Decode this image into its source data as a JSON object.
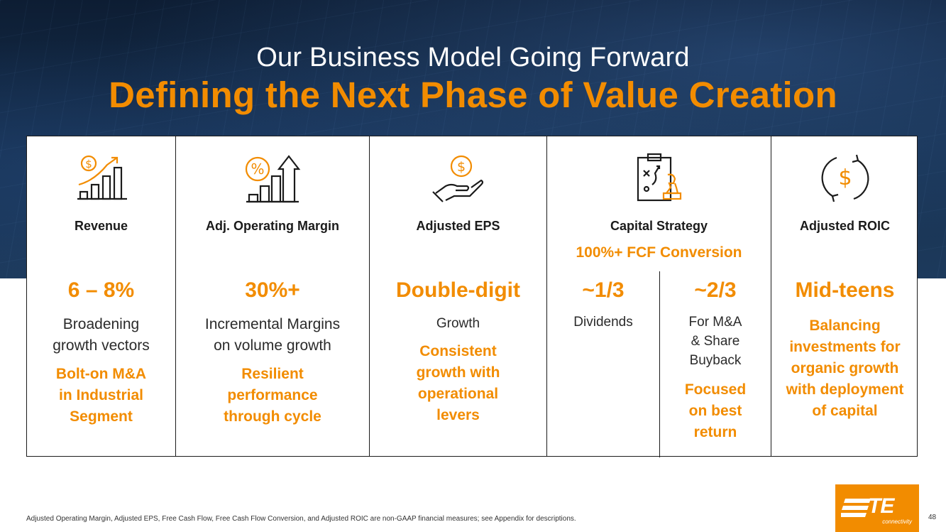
{
  "header": {
    "subtitle": "Our Business Model Going Forward",
    "title": "Defining the Next Phase of Value Creation"
  },
  "columns": {
    "revenue": {
      "icon": "revenue-growth-chart-icon",
      "title": "Revenue",
      "value": "6 – 8%",
      "description_lines": [
        "Broadening",
        "growth vectors"
      ],
      "highlight_lines": [
        "Bolt-on M&A",
        "in Industrial",
        "Segment"
      ]
    },
    "margin": {
      "icon": "percent-bar-chart-icon",
      "title": "Adj. Operating Margin",
      "value": "30%+",
      "description_lines": [
        "Incremental Margins",
        "on volume growth"
      ],
      "highlight_lines": [
        "Resilient",
        "performance",
        "through cycle"
      ]
    },
    "eps": {
      "icon": "dollar-hand-icon",
      "title": "Adjusted EPS",
      "value": "Double-digit",
      "description": "Growth",
      "highlight_lines": [
        "Consistent",
        "growth with",
        "operational",
        "levers"
      ]
    },
    "capital": {
      "icon": "strategy-clipboard-chess-icon",
      "title": "Capital Strategy",
      "fcf": "100%+ FCF Conversion",
      "dividends": {
        "value": "~1/3",
        "description": "Dividends"
      },
      "ma": {
        "value": "~2/3",
        "description_lines": [
          "For M&A",
          "& Share",
          "Buyback"
        ],
        "highlight_lines": [
          "Focused",
          "on best",
          "return"
        ]
      }
    },
    "roic": {
      "icon": "dollar-cycle-icon",
      "title": "Adjusted ROIC",
      "value": "Mid-teens",
      "highlight_lines": [
        "Balancing",
        "investments for",
        "organic growth",
        "with deployment",
        "of capital"
      ]
    }
  },
  "footnote": "Adjusted Operating Margin, Adjusted EPS, Free Cash Flow, Free Cash Flow Conversion, and Adjusted ROIC are non-GAAP financial measures; see Appendix for descriptions.",
  "logo": {
    "text": "TE",
    "subtext": "connectivity"
  },
  "page_number": "48",
  "colors": {
    "accent": "#f28c00",
    "navy": "#16304f",
    "text": "#1b1b1b"
  }
}
